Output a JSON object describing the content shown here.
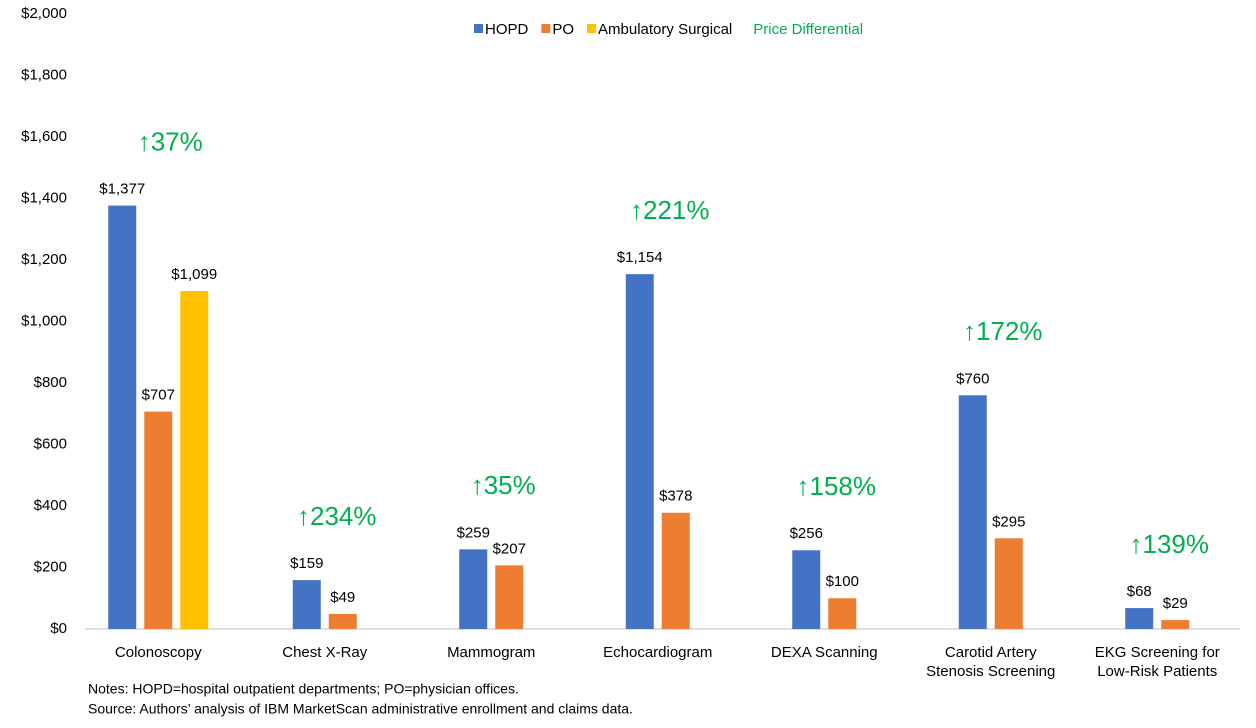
{
  "chart_data": {
    "type": "bar",
    "categories": [
      "Colonoscopy",
      "Chest X-Ray",
      "Mammogram",
      "Echocardiogram",
      "DEXA Scanning",
      "Carotid Artery\nStenosis Screening",
      "EKG Screening for\nLow-Risk Patients"
    ],
    "series": [
      {
        "name": "HOPD",
        "color": "#4472c4",
        "values": [
          1377,
          159,
          259,
          1154,
          256,
          760,
          68
        ],
        "value_labels": [
          "$1,377",
          "$159",
          "$259",
          "$1,154",
          "$256",
          "$760",
          "$68"
        ]
      },
      {
        "name": "PO",
        "color": "#ed7d31",
        "values": [
          707,
          49,
          207,
          378,
          100,
          295,
          29
        ],
        "value_labels": [
          "$707",
          "$49",
          "$207",
          "$378",
          "$100",
          "$295",
          "$29"
        ]
      },
      {
        "name": "Ambulatory Surgical",
        "color": "#ffc000",
        "values": [
          1099,
          null,
          null,
          null,
          null,
          null,
          null
        ],
        "value_labels": [
          "$1,099",
          null,
          null,
          null,
          null,
          null,
          null
        ]
      }
    ],
    "differential_legend": "Price Differential",
    "differential_color": "#00b050",
    "annotations": [
      "↑37%",
      "↑234%",
      "↑35%",
      "↑221%",
      "↑158%",
      "↑172%",
      "↑139%"
    ],
    "ylim": [
      0,
      2000
    ],
    "yticks": [
      {
        "value": 0,
        "label": "$0"
      },
      {
        "value": 200,
        "label": "$200"
      },
      {
        "value": 400,
        "label": "$400"
      },
      {
        "value": 600,
        "label": "$600"
      },
      {
        "value": 800,
        "label": "$800"
      },
      {
        "value": 1000,
        "label": "$1,000"
      },
      {
        "value": 1200,
        "label": "$1,200"
      },
      {
        "value": 1400,
        "label": "$1,400"
      },
      {
        "value": 1600,
        "label": "$1,600"
      },
      {
        "value": 1800,
        "label": "$1,800"
      },
      {
        "value": 2000,
        "label": "$2,000"
      }
    ],
    "notes": [
      "Notes: HOPD=hospital outpatient departments; PO=physician offices.",
      "Source: Authors’ analysis of IBM MarketScan administrative enrollment and claims data."
    ]
  }
}
